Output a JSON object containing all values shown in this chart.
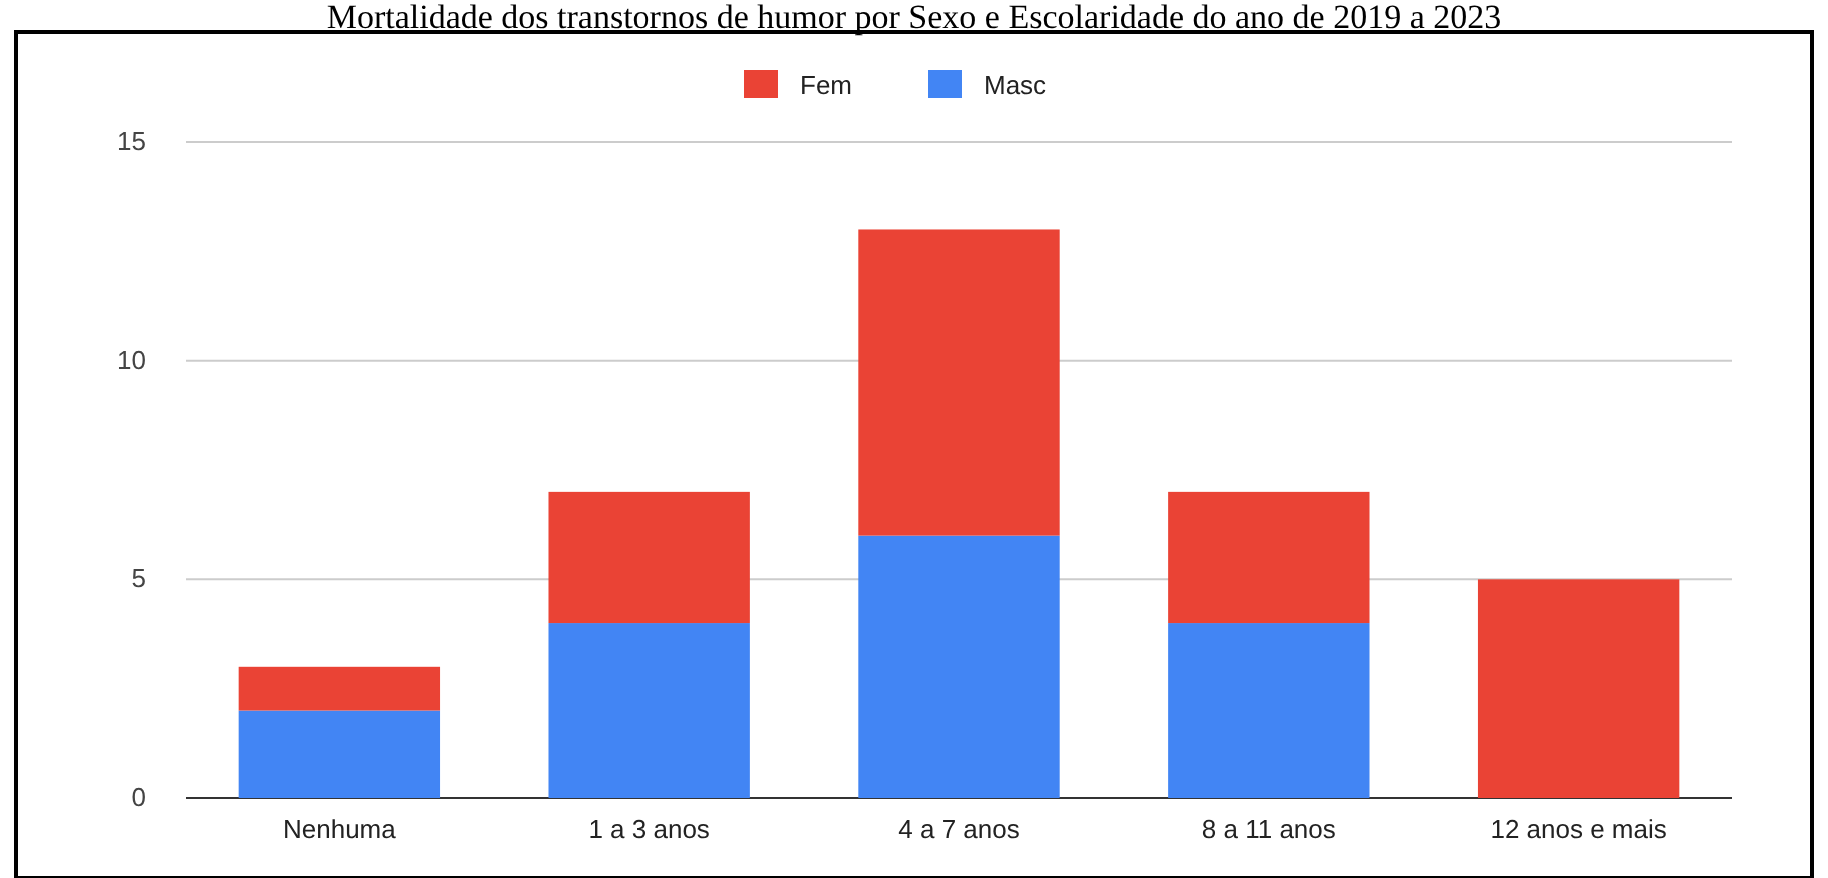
{
  "chart_data": {
    "type": "bar",
    "title": "Mortalidade dos transtornos de humor por Sexo e Escolaridade do ano de 2019 a 2023",
    "categories": [
      "Nenhuma",
      "1 a 3 anos",
      "4 a 7 anos",
      "8 a 11 anos",
      "12 anos e mais"
    ],
    "stacked": true,
    "series": [
      {
        "name": "Masc",
        "color": "#4285f4",
        "values": [
          2,
          4,
          6,
          4,
          0
        ]
      },
      {
        "name": "Fem",
        "color": "#ea4335",
        "values": [
          1,
          3,
          7,
          3,
          5
        ]
      }
    ],
    "ylim": [
      0,
      15
    ],
    "yticks": [
      0,
      5,
      10,
      15
    ],
    "grid": "y",
    "legend": "top"
  }
}
